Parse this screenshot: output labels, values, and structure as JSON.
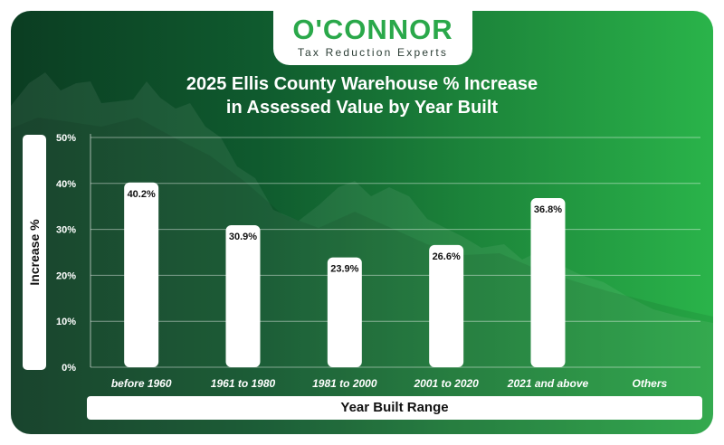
{
  "brand": {
    "name": "O'CONNOR",
    "tagline": "Tax Reduction Experts"
  },
  "colors": {
    "bar": "#ffffff",
    "brand_green": "#2aa84a",
    "gridline": "rgba(255,255,255,0.45)"
  },
  "chart_data": {
    "type": "bar",
    "title": "2025 Ellis County Warehouse % Increase in Assessed Value by Year Built",
    "title_lines": [
      "2025 Ellis County Warehouse % Increase",
      "in Assessed Value by Year Built"
    ],
    "xlabel": "Year Built Range",
    "ylabel": "Increase %",
    "categories": [
      "before 1960",
      "1961 to 1980",
      "1981 to 2000",
      "2001 to 2020",
      "2021 and above",
      "Others"
    ],
    "values": [
      40.2,
      30.9,
      23.9,
      26.6,
      36.8,
      null
    ],
    "data_labels": [
      "40.2%",
      "30.9%",
      "23.9%",
      "26.6%",
      "36.8%",
      ""
    ],
    "ylim": [
      0,
      50
    ],
    "yticks": [
      0,
      10,
      20,
      30,
      40,
      50
    ],
    "ytick_labels": [
      "0%",
      "10%",
      "20%",
      "30%",
      "40%",
      "50%"
    ],
    "grid": true,
    "legend": "none"
  }
}
